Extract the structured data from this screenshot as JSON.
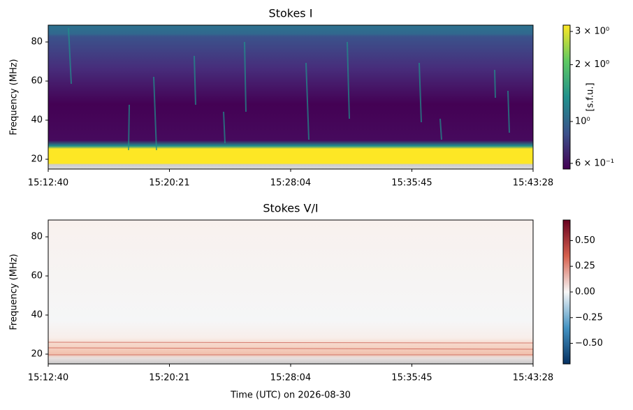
{
  "chart_data": [
    {
      "type": "heatmap",
      "title": "Stokes I",
      "ylabel": "Frequency (MHz)",
      "xticks": [
        "15:12:40",
        "15:20:21",
        "15:28:04",
        "15:35:45",
        "15:43:28"
      ],
      "ylim": [
        15,
        88.6
      ],
      "yticks": [
        20,
        40,
        60,
        80
      ],
      "colormap": "viridis",
      "color_scale": "log",
      "colorbar_label": "[s.f.u.]",
      "clim": [
        0.56,
        3.24
      ],
      "cticks": [
        {
          "value": 3,
          "label": "3 × 10⁰"
        },
        {
          "value": 2,
          "label": "2 × 10⁰"
        },
        {
          "value": 1,
          "label": "10⁰"
        },
        {
          "value": 0.6,
          "label": "6 × 10⁻¹"
        }
      ]
    },
    {
      "type": "heatmap",
      "title": "Stokes V/I",
      "ylabel": "Frequency (MHz)",
      "xlabel": "Time (UTC) on 2026-08-30",
      "xticks": [
        "15:12:40",
        "15:20:21",
        "15:28:04",
        "15:35:45",
        "15:43:28"
      ],
      "ylim": [
        15,
        88.6
      ],
      "yticks": [
        20,
        40,
        60,
        80
      ],
      "colormap": "RdBu_r",
      "color_scale": "linear",
      "clim": [
        -0.7,
        0.7
      ],
      "cticks": [
        {
          "value": 0.5,
          "label": "0.50"
        },
        {
          "value": 0.25,
          "label": "0.25"
        },
        {
          "value": 0,
          "label": "0.00"
        },
        {
          "value": -0.25,
          "label": "−0.25"
        },
        {
          "value": -0.5,
          "label": "−0.50"
        }
      ]
    }
  ]
}
